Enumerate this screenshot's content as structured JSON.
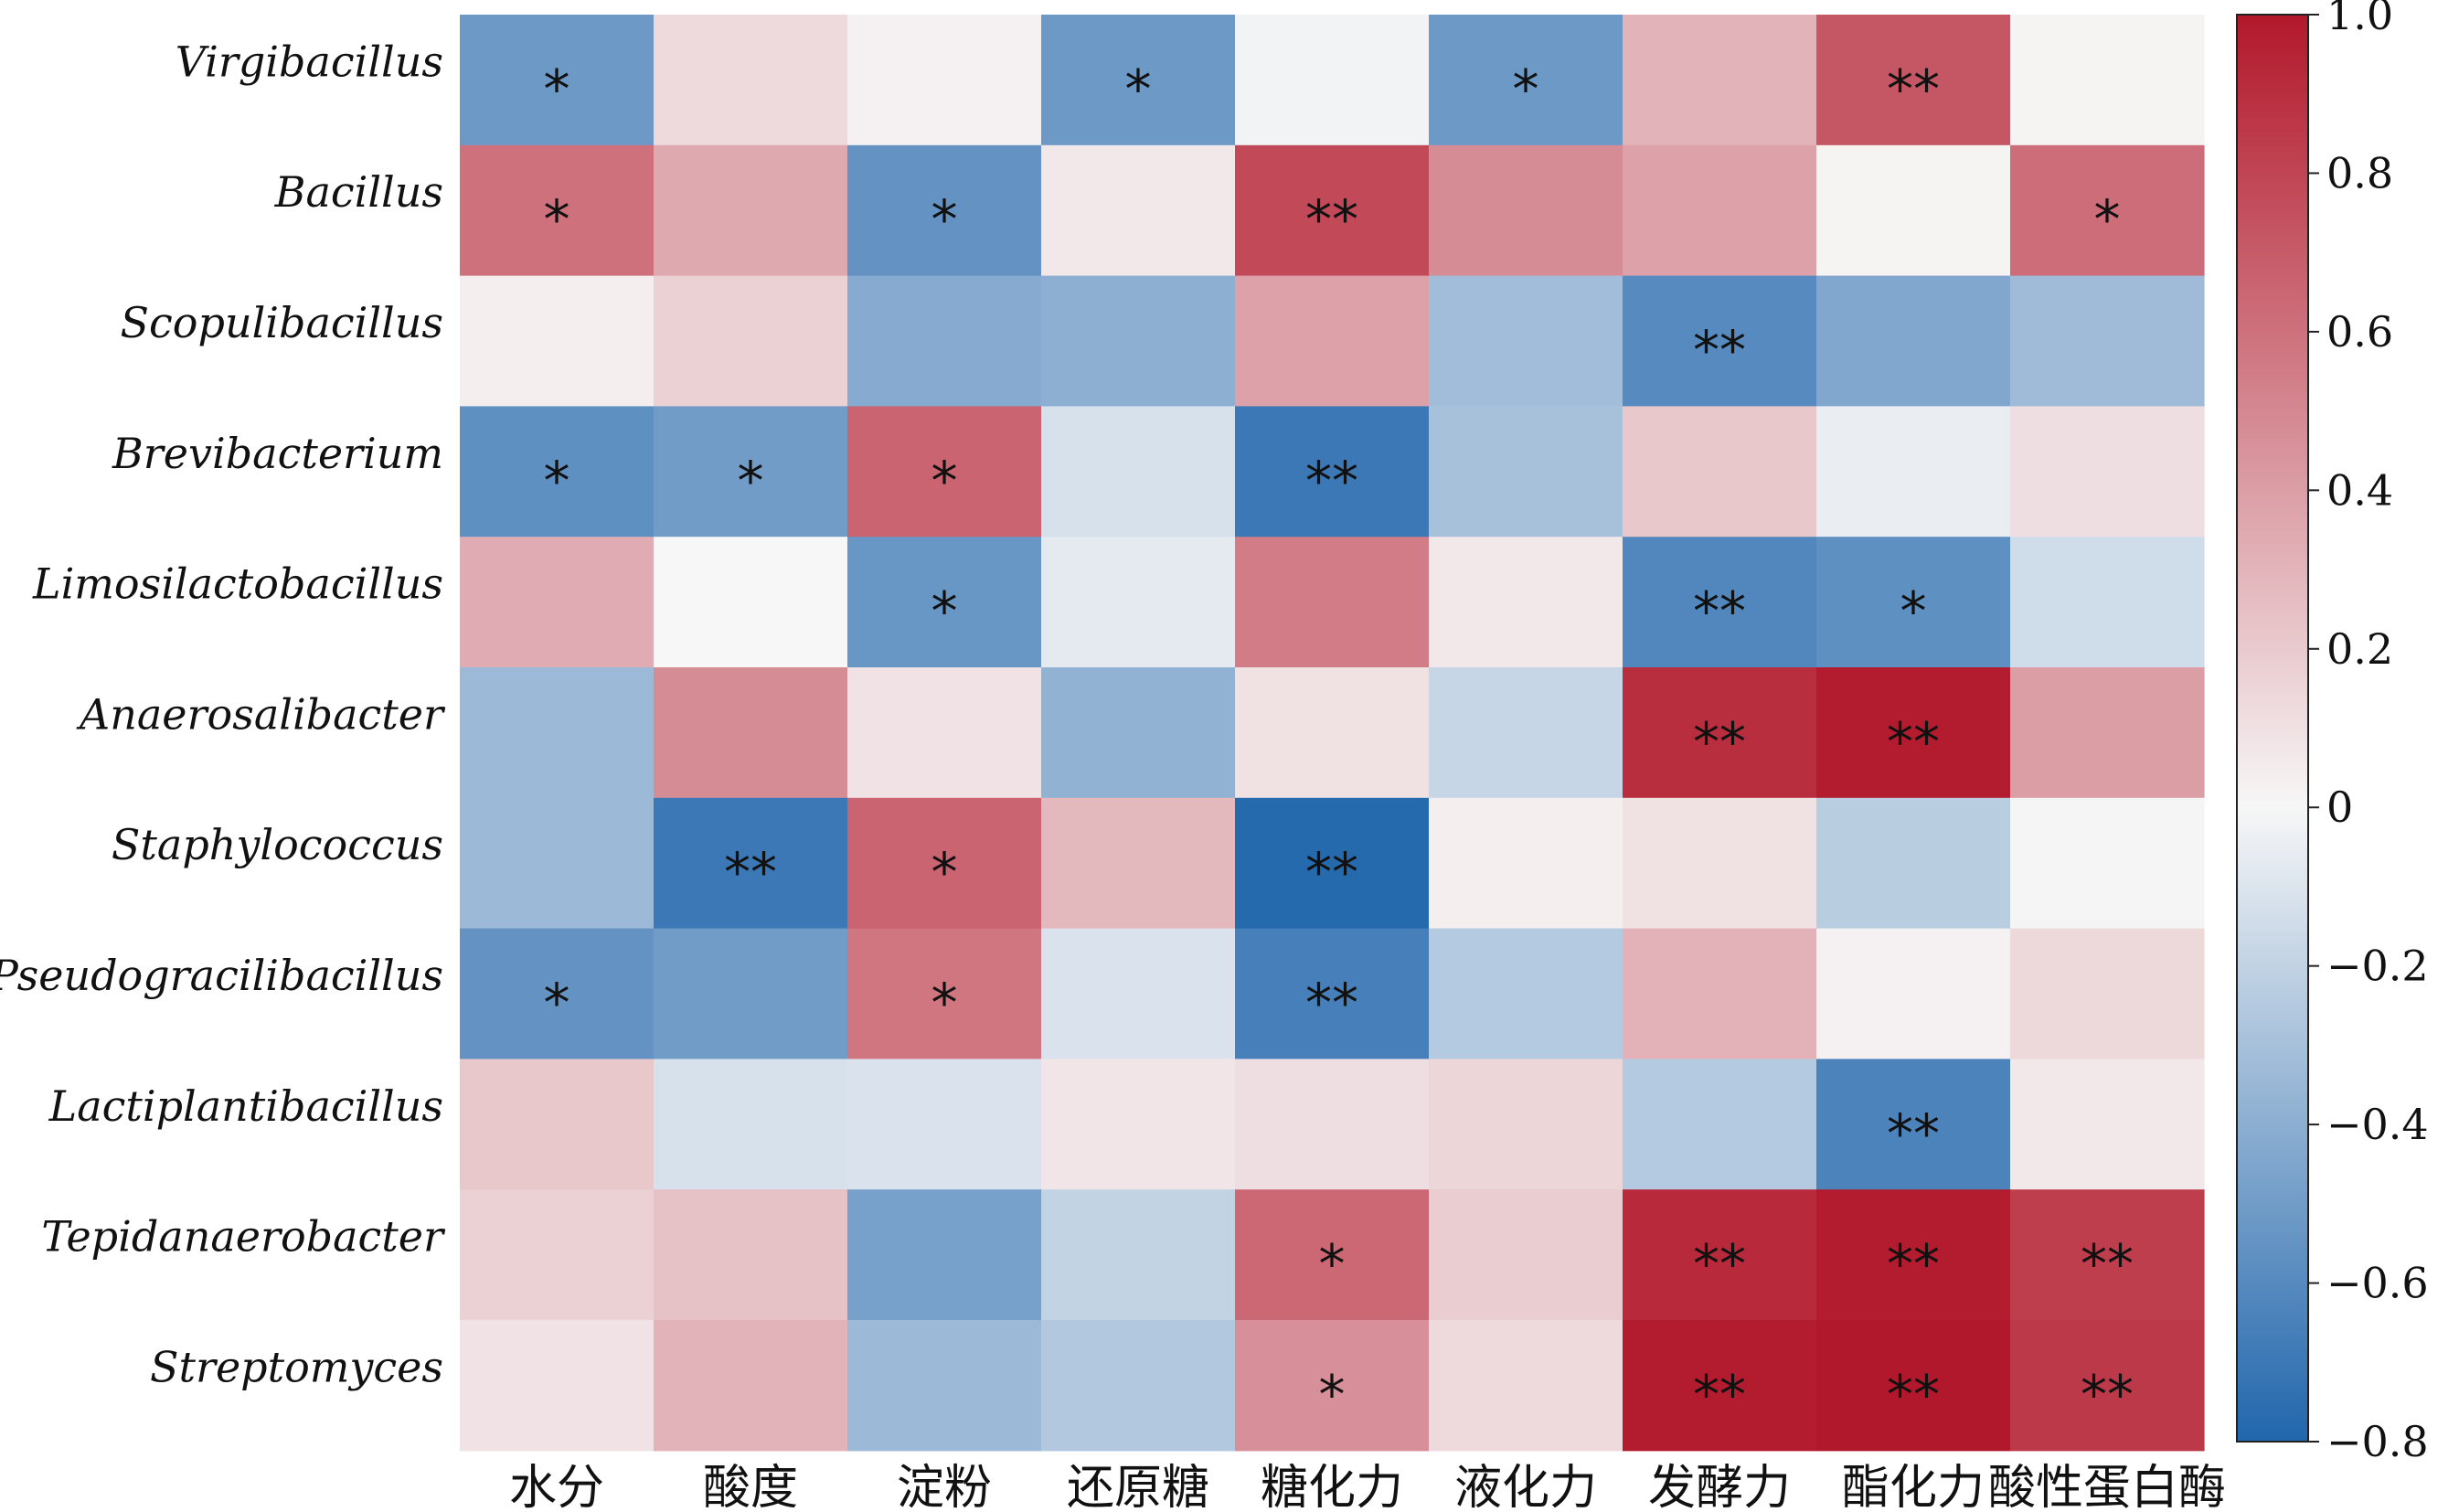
{
  "chart_data": {
    "type": "heatmap",
    "rows": [
      "Virgibacillus",
      "Bacillus",
      "Scopulibacillus",
      "Brevibacterium",
      "Limosilactobacillus",
      "Anaerosalibacter",
      "Staphylococcus",
      "Pseudogracilibacillus",
      "Lactiplantibacillus",
      "Tepidanaerobacter",
      "Streptomyces"
    ],
    "columns": [
      "水分",
      "酸度",
      "淀粉",
      "还原糖",
      "糖化力",
      "液化力",
      "发酵力",
      "酯化力",
      "酸性蛋白酶"
    ],
    "values": [
      [
        -0.52,
        0.13,
        0.03,
        -0.52,
        -0.02,
        -0.52,
        0.3,
        0.72,
        0.02
      ],
      [
        0.6,
        0.35,
        -0.55,
        0.07,
        0.78,
        0.48,
        0.38,
        0.02,
        0.62
      ],
      [
        0.04,
        0.17,
        -0.42,
        -0.4,
        0.38,
        -0.32,
        -0.6,
        -0.44,
        -0.33
      ],
      [
        -0.57,
        -0.5,
        0.66,
        -0.12,
        -0.7,
        -0.3,
        0.21,
        -0.05,
        0.11
      ],
      [
        0.34,
        0.0,
        -0.53,
        -0.07,
        0.55,
        0.07,
        -0.62,
        -0.57,
        -0.15
      ],
      [
        -0.34,
        0.48,
        0.09,
        -0.38,
        0.1,
        -0.18,
        0.9,
        0.98,
        0.4
      ],
      [
        -0.34,
        -0.7,
        0.66,
        0.28,
        -0.78,
        0.04,
        0.1,
        -0.23,
        0.01
      ],
      [
        -0.55,
        -0.5,
        0.58,
        -0.11,
        -0.66,
        -0.25,
        0.31,
        0.03,
        0.14
      ],
      [
        0.21,
        -0.12,
        -0.11,
        0.08,
        0.11,
        0.15,
        -0.25,
        -0.64,
        0.07
      ],
      [
        0.17,
        0.24,
        -0.48,
        -0.2,
        0.64,
        0.19,
        0.92,
        0.98,
        0.83
      ],
      [
        0.09,
        0.3,
        -0.34,
        -0.26,
        0.46,
        0.13,
        0.98,
        1.0,
        0.85
      ]
    ],
    "annotations": [
      [
        "*",
        "",
        "",
        "*",
        "",
        "*",
        "",
        "**",
        ""
      ],
      [
        "*",
        "",
        "*",
        "",
        "**",
        "",
        "",
        "",
        "*"
      ],
      [
        "",
        "",
        "",
        "",
        "",
        "",
        "**",
        "",
        ""
      ],
      [
        "*",
        "*",
        "*",
        "",
        "**",
        "",
        "",
        "",
        ""
      ],
      [
        "",
        "",
        "*",
        "",
        "",
        "",
        "**",
        "*",
        ""
      ],
      [
        "",
        "",
        "",
        "",
        "",
        "",
        "**",
        "**",
        ""
      ],
      [
        "",
        "**",
        "*",
        "",
        "**",
        "",
        "",
        "",
        ""
      ],
      [
        "*",
        "",
        "*",
        "",
        "**",
        "",
        "",
        "",
        ""
      ],
      [
        "",
        "",
        "",
        "",
        "",
        "",
        "",
        "**",
        ""
      ],
      [
        "",
        "",
        "",
        "",
        "*",
        "",
        "**",
        "**",
        "**"
      ],
      [
        "",
        "",
        "",
        "",
        "*",
        "",
        "**",
        "**",
        "**"
      ]
    ],
    "colorbar": {
      "min": -0.8,
      "max": 1.0,
      "ticks": [
        1.0,
        0.8,
        0.6,
        0.4,
        0.2,
        0,
        -0.2,
        -0.4,
        -0.6,
        -0.8
      ],
      "tick_labels": [
        "1.0",
        "0.8",
        "0.6",
        "0.4",
        "0.2",
        "0",
        "−0.2",
        "−0.4",
        "−0.6",
        "−0.8"
      ],
      "colors": [
        "#2166ac",
        "#f7f7f7",
        "#b2182b"
      ]
    }
  }
}
